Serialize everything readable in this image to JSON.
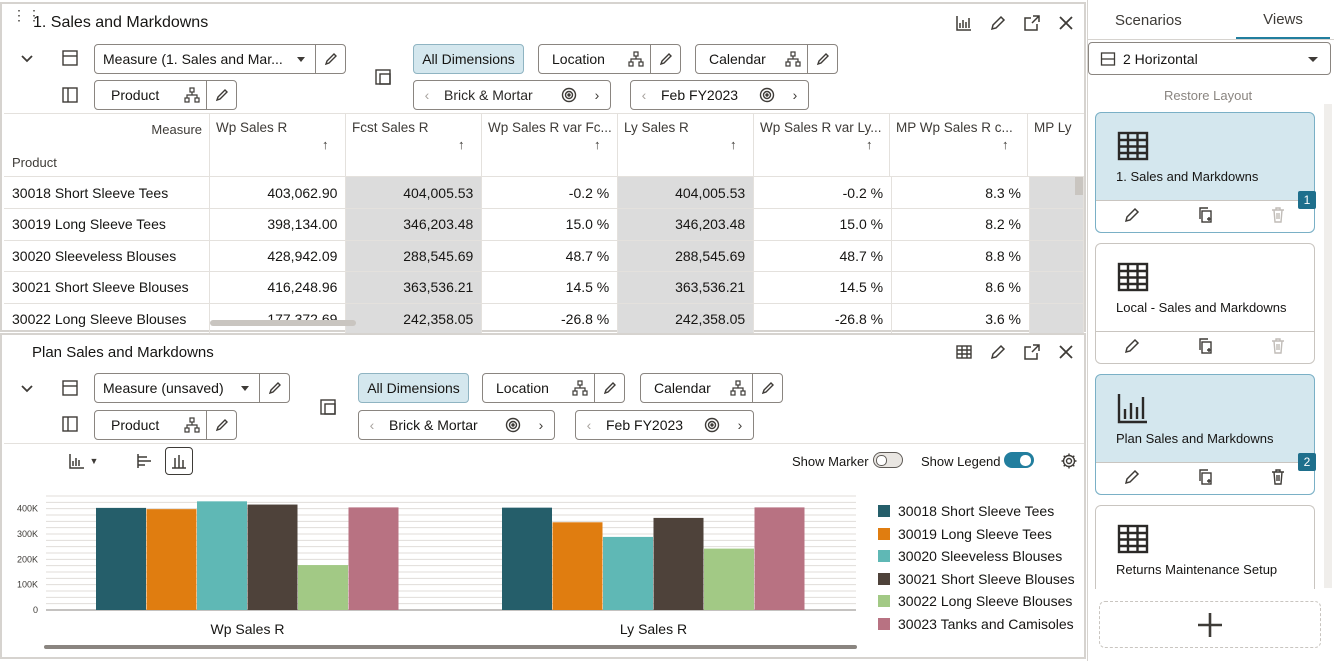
{
  "top_panel": {
    "title": "1. Sales and Markdowns",
    "measure_label": "Measure (1. Sales and Mar...",
    "product_label": "Product",
    "all_dimensions": "All Dimensions",
    "location": "Location",
    "calendar": "Calendar",
    "location_value": "Brick & Mortar",
    "calendar_value": "Feb FY2023",
    "measure_header": "Measure",
    "product_header": "Product",
    "columns": [
      "Wp Sales R",
      "Fcst Sales R",
      "Wp Sales R var Fc...",
      "Ly Sales R",
      "Wp Sales R var Ly...",
      "MP Wp Sales R c...",
      "MP Ly"
    ],
    "rows": [
      {
        "name": "30018 Short Sleeve Tees",
        "values": [
          "403,062.90",
          "404,005.53",
          "-0.2 %",
          "404,005.53",
          "-0.2 %",
          "8.3 %"
        ]
      },
      {
        "name": "30019 Long Sleeve Tees",
        "values": [
          "398,134.00",
          "346,203.48",
          "15.0 %",
          "346,203.48",
          "15.0 %",
          "8.2 %"
        ]
      },
      {
        "name": "30020 Sleeveless Blouses",
        "values": [
          "428,942.09",
          "288,545.69",
          "48.7 %",
          "288,545.69",
          "48.7 %",
          "8.8 %"
        ]
      },
      {
        "name": "30021 Short Sleeve Blouses",
        "values": [
          "416,248.96",
          "363,536.21",
          "14.5 %",
          "363,536.21",
          "14.5 %",
          "8.6 %"
        ]
      },
      {
        "name": "30022 Long Sleeve Blouses",
        "values": [
          "177,372.69",
          "242,358.05",
          "-26.8 %",
          "242,358.05",
          "-26.8 %",
          "3.6 %"
        ]
      }
    ]
  },
  "bottom_panel": {
    "title": "Plan Sales and Markdowns",
    "measure_label": "Measure (unsaved)",
    "product_label": "Product",
    "all_dimensions": "All Dimensions",
    "location": "Location",
    "calendar": "Calendar",
    "location_value": "Brick & Mortar",
    "calendar_value": "Feb FY2023",
    "show_marker": "Show Marker",
    "show_legend": "Show Legend"
  },
  "chart_data": {
    "type": "bar",
    "categories": [
      "Wp Sales R",
      "Ly Sales R"
    ],
    "yticks": [
      "400K",
      "300K",
      "200K",
      "100K",
      "0"
    ],
    "ylim": [
      0,
      450000
    ],
    "grid": true,
    "legend_position": "right",
    "series": [
      {
        "name": "30018 Short Sleeve Tees",
        "color": "#255e6a",
        "values": [
          403062.9,
          404005.53
        ]
      },
      {
        "name": "30019 Long Sleeve Tees",
        "color": "#e07d10",
        "values": [
          398134.0,
          346203.48
        ]
      },
      {
        "name": "30020 Sleeveless Blouses",
        "color": "#5fb8b5",
        "values": [
          428942.09,
          288545.69
        ]
      },
      {
        "name": "30021 Short Sleeve Blouses",
        "color": "#4e423a",
        "values": [
          416248.96,
          363536.21
        ]
      },
      {
        "name": "30022 Long Sleeve Blouses",
        "color": "#a2c985",
        "values": [
          177372.69,
          242358.05
        ]
      },
      {
        "name": "30023 Tanks and Camisoles",
        "color": "#b87282",
        "values": [
          405000,
          405000
        ]
      }
    ]
  },
  "sidebar": {
    "tab_scenarios": "Scenarios",
    "tab_views": "Views",
    "layout_select": "2 Horizontal",
    "restore_layout": "Restore Layout",
    "cards": [
      {
        "name": "1. Sales and Markdowns",
        "badge": "1"
      },
      {
        "name": "Local - Sales and Markdowns",
        "badge": ""
      },
      {
        "name": "Plan Sales and Markdowns",
        "badge": "2"
      },
      {
        "name": "Returns Maintenance Setup",
        "badge": ""
      }
    ]
  }
}
